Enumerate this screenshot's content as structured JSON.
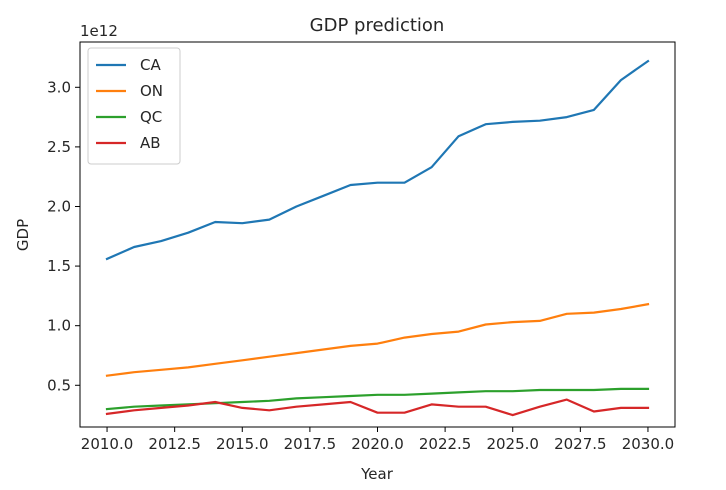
{
  "chart_data": {
    "type": "line",
    "title": "GDP prediction",
    "xlabel": "Year",
    "ylabel": "GDP",
    "y_offset_label": "1e12",
    "xlim": [
      2009.0,
      2031.0
    ],
    "ylim": [
      0.15,
      3.38
    ],
    "x_ticks": [
      2010.0,
      2012.5,
      2015.0,
      2017.5,
      2020.0,
      2022.5,
      2025.0,
      2027.5,
      2030.0
    ],
    "x_tick_labels": [
      "2010.0",
      "2012.5",
      "2015.0",
      "2017.5",
      "2020.0",
      "2022.5",
      "2025.0",
      "2027.5",
      "2030.0"
    ],
    "y_ticks": [
      0.5,
      1.0,
      1.5,
      2.0,
      2.5,
      3.0
    ],
    "y_tick_labels": [
      "0.5",
      "1.0",
      "1.5",
      "2.0",
      "2.5",
      "3.0"
    ],
    "grid": false,
    "legend_position": "top-left",
    "x": [
      2010,
      2011,
      2012,
      2013,
      2014,
      2015,
      2016,
      2017,
      2018,
      2019,
      2020,
      2021,
      2022,
      2023,
      2024,
      2025,
      2026,
      2027,
      2028,
      2029,
      2030
    ],
    "series": [
      {
        "name": "CA",
        "color": "#1f77b4",
        "values": [
          1.56,
          1.66,
          1.71,
          1.78,
          1.87,
          1.86,
          1.89,
          2.0,
          2.09,
          2.18,
          2.2,
          2.2,
          2.33,
          2.59,
          2.69,
          2.71,
          2.72,
          2.75,
          2.81,
          3.06,
          3.22
        ]
      },
      {
        "name": "ON",
        "color": "#ff7f0e",
        "values": [
          0.58,
          0.61,
          0.63,
          0.65,
          0.68,
          0.71,
          0.74,
          0.77,
          0.8,
          0.83,
          0.85,
          0.9,
          0.93,
          0.95,
          1.01,
          1.03,
          1.04,
          1.1,
          1.11,
          1.14,
          1.18
        ]
      },
      {
        "name": "QC",
        "color": "#2ca02c",
        "values": [
          0.3,
          0.32,
          0.33,
          0.34,
          0.35,
          0.36,
          0.37,
          0.39,
          0.4,
          0.41,
          0.42,
          0.42,
          0.43,
          0.44,
          0.45,
          0.45,
          0.46,
          0.46,
          0.46,
          0.47,
          0.47
        ]
      },
      {
        "name": "AB",
        "color": "#d62728",
        "values": [
          0.26,
          0.29,
          0.31,
          0.33,
          0.36,
          0.31,
          0.29,
          0.32,
          0.34,
          0.36,
          0.27,
          0.27,
          0.34,
          0.32,
          0.32,
          0.25,
          0.32,
          0.38,
          0.28,
          0.31,
          0.31
        ]
      }
    ]
  }
}
